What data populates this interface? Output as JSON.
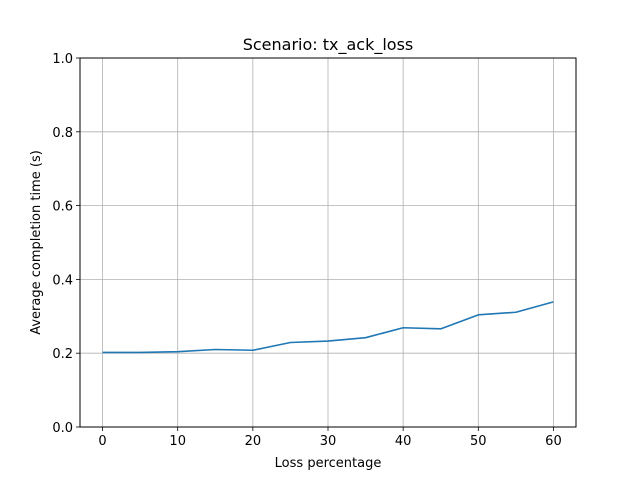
{
  "chart_data": {
    "type": "line",
    "title": "Scenario: tx_ack_loss",
    "xlabel": "Loss percentage",
    "ylabel": "Average completion time (s)",
    "xlim": [
      -3,
      63
    ],
    "ylim": [
      0.0,
      1.0
    ],
    "xticks": [
      0,
      10,
      20,
      30,
      40,
      50,
      60
    ],
    "yticks": [
      0.0,
      0.2,
      0.4,
      0.6,
      0.8,
      1.0
    ],
    "xtick_labels": [
      "0",
      "10",
      "20",
      "30",
      "40",
      "50",
      "60"
    ],
    "ytick_labels": [
      "0.0",
      "0.2",
      "0.4",
      "0.6",
      "0.8",
      "1.0"
    ],
    "grid": true,
    "series": [
      {
        "color": "#1f77b4",
        "x": [
          0,
          5,
          10,
          15,
          20,
          25,
          30,
          35,
          40,
          45,
          50,
          55,
          60
        ],
        "y": [
          0.202,
          0.202,
          0.204,
          0.21,
          0.208,
          0.229,
          0.233,
          0.242,
          0.269,
          0.266,
          0.304,
          0.311,
          0.339
        ]
      }
    ]
  }
}
